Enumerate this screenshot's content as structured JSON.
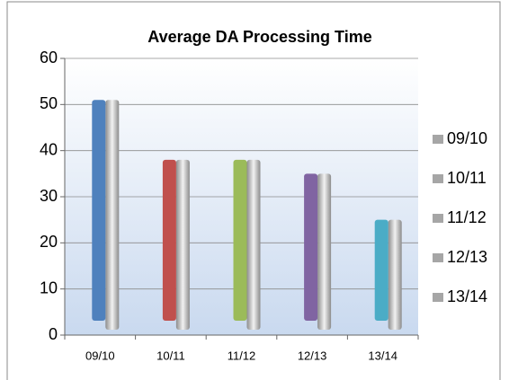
{
  "chart_data": {
    "type": "bar",
    "title": "Average DA Processing Time",
    "categories": [
      "09/10",
      "10/11",
      "11/12",
      "12/13",
      "13/14"
    ],
    "values": [
      51,
      38,
      38,
      35,
      25
    ],
    "colors": [
      "#4f81bd",
      "#c0504d",
      "#9bbb59",
      "#8064a2",
      "#4bacc6"
    ],
    "legend_color": "#a6a6a6",
    "ylim": [
      0,
      60
    ],
    "yticks": [
      0,
      10,
      20,
      30,
      40,
      50,
      60
    ],
    "grid": true,
    "legend": "right"
  }
}
